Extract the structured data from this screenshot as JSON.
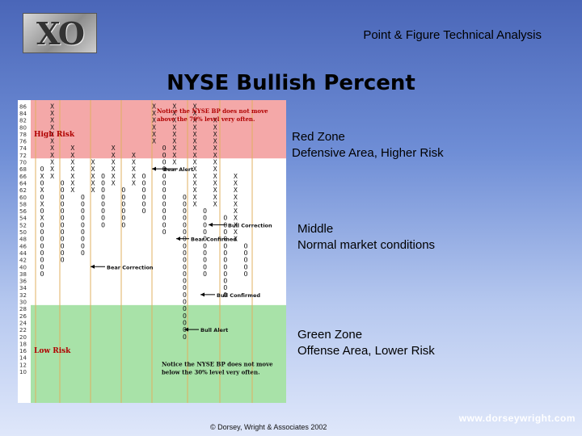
{
  "logo": {
    "text": "XO"
  },
  "header": {
    "title": "Point & Figure Technical Analysis"
  },
  "main": {
    "title": "NYSE Bullish Percent"
  },
  "chart": {
    "y_labels": [
      "86",
      "84",
      "82",
      "80",
      "78",
      "76",
      "74",
      "72",
      "70",
      "68",
      "66",
      "64",
      "62",
      "60",
      "58",
      "56",
      "54",
      "52",
      "50",
      "48",
      "46",
      "44",
      "42",
      "40",
      "38",
      "36",
      "34",
      "32",
      "30",
      "28",
      "26",
      "24",
      "22",
      "20",
      "18",
      "16",
      "14",
      "12",
      "10"
    ],
    "zones": {
      "high": "High Risk",
      "low": "Low Risk"
    },
    "notes": {
      "top": [
        "Notice the NYSE BP does not move",
        "above the 70% level very often."
      ],
      "bottom": [
        "Notice the NYSE BP does not move",
        "below the 30% level very often."
      ]
    },
    "annotations": {
      "bear_alert": "Bear Alert",
      "bull_correction": "Bull Correction",
      "bear_confirmed": "Bear Confirmed",
      "bear_correction": "Bear Correction",
      "bull_confirmed": "Bull Confirmed",
      "bull_alert": "Bull Alert"
    },
    "colors": {
      "red_zone": "#f4a8a8",
      "green_zone": "#a8e2a8",
      "grid": "#e0b060",
      "annotation_text": "#b00000"
    },
    "columns": [
      {
        "start": 68,
        "marks": "OXOXOXOXOOOOOOOO"
      },
      {
        "start": 66,
        "marks": "XXXXXXXXXXX"
      },
      {
        "start": 64,
        "marks": "OOOOOOOOOOOO"
      },
      {
        "start": 62,
        "marks": "XXXXXXX"
      },
      {
        "start": 60,
        "marks": "OOOOOOOOO"
      },
      {
        "start": 62,
        "marks": "XXXXX"
      },
      {
        "start": 66,
        "marks": "OOOOOOOO"
      },
      {
        "start": 64,
        "marks": "XXXXXX"
      },
      {
        "start": 62,
        "marks": "OOOOOO"
      },
      {
        "start": 64,
        "marks": "XXXXX"
      },
      {
        "start": 66,
        "marks": "OOOOOO"
      },
      {
        "start": 76,
        "marks": "XXXXXXXXXXX"
      },
      {
        "start": 74,
        "marks": "OOOOOOOOOOOOO"
      },
      {
        "start": 70,
        "marks": "XXXXXXXXX"
      },
      {
        "start": 60,
        "marks": "OOOOOOOOOOOOOOOOOOOOO"
      },
      {
        "start": 58,
        "marks": "XXXXXXXXXXXXXXXXXXXXXX"
      },
      {
        "start": 56,
        "marks": "OOOOOOOOOO"
      },
      {
        "start": 58,
        "marks": "XXXXXXXXXXXXX"
      },
      {
        "start": 54,
        "marks": "OOOOOOOOOOOO"
      },
      {
        "start": 48,
        "marks": "XXXXXXXXXX"
      },
      {
        "start": 46,
        "marks": "OOOOO"
      }
    ]
  },
  "side_labels": {
    "red": [
      "Red Zone",
      "Defensive Area, Higher Risk"
    ],
    "middle": [
      "Middle",
      "Normal market conditions"
    ],
    "green": [
      "Green Zone",
      "Offense Area, Lower Risk"
    ]
  },
  "footer": {
    "copyright": "© Dorsey, Wright & Associates 2002",
    "url": "www.dorseywright.com"
  }
}
